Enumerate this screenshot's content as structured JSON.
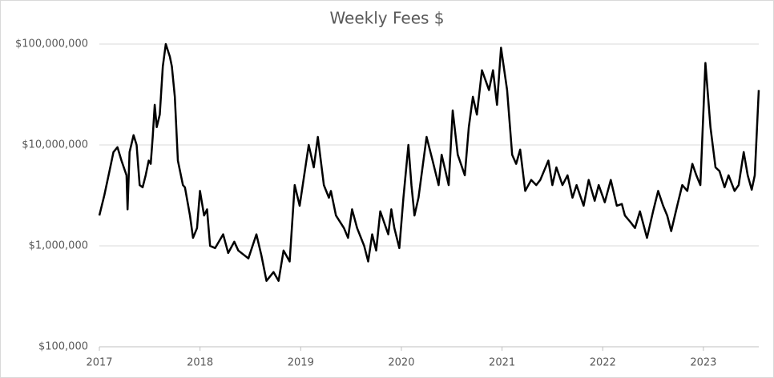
{
  "chart_data": {
    "type": "line",
    "title": "Weekly Fees $",
    "x": [
      2017.0,
      2017.05,
      2017.1,
      2017.14,
      2017.18,
      2017.22,
      2017.27,
      2017.28,
      2017.3,
      2017.34,
      2017.37,
      2017.4,
      2017.43,
      2017.46,
      2017.49,
      2017.51,
      2017.53,
      2017.55,
      2017.57,
      2017.6,
      2017.63,
      2017.66,
      2017.7,
      2017.72,
      2017.75,
      2017.78,
      2017.83,
      2017.85,
      2017.9,
      2017.93,
      2017.97,
      2018.0,
      2018.04,
      2018.07,
      2018.1,
      2018.15,
      2018.23,
      2018.28,
      2018.34,
      2018.38,
      2018.48,
      2018.56,
      2018.61,
      2018.66,
      2018.73,
      2018.78,
      2018.83,
      2018.89,
      2018.94,
      2018.99,
      2019.08,
      2019.13,
      2019.17,
      2019.23,
      2019.28,
      2019.3,
      2019.35,
      2019.43,
      2019.47,
      2019.51,
      2019.56,
      2019.63,
      2019.67,
      2019.71,
      2019.75,
      2019.79,
      2019.87,
      2019.9,
      2019.93,
      2019.98,
      2020.02,
      2020.07,
      2020.1,
      2020.13,
      2020.17,
      2020.25,
      2020.31,
      2020.37,
      2020.4,
      2020.47,
      2020.51,
      2020.56,
      2020.63,
      2020.67,
      2020.71,
      2020.75,
      2020.8,
      2020.87,
      2020.91,
      2020.95,
      2020.99,
      2021.05,
      2021.1,
      2021.14,
      2021.18,
      2021.23,
      2021.29,
      2021.34,
      2021.38,
      2021.46,
      2021.5,
      2021.54,
      2021.6,
      2021.65,
      2021.7,
      2021.74,
      2021.81,
      2021.86,
      2021.92,
      2021.96,
      2022.02,
      2022.08,
      2022.14,
      2022.19,
      2022.22,
      2022.28,
      2022.32,
      2022.37,
      2022.44,
      2022.5,
      2022.55,
      2022.6,
      2022.64,
      2022.68,
      2022.74,
      2022.79,
      2022.84,
      2022.89,
      2022.93,
      2022.97,
      2023.02,
      2023.07,
      2023.12,
      2023.16,
      2023.21,
      2023.25,
      2023.31,
      2023.35,
      2023.4,
      2023.44,
      2023.48,
      2023.51,
      2023.55
    ],
    "series": [
      {
        "color": "#000000",
        "values": [
          2000000,
          3200000,
          5500000,
          8500000,
          9500000,
          7000000,
          5000000,
          2300000,
          8500000,
          12500000,
          10000000,
          4000000,
          3800000,
          5000000,
          7000000,
          6500000,
          12000000,
          25000000,
          15000000,
          20000000,
          60000000,
          100000000,
          75000000,
          60000000,
          30000000,
          7000000,
          4000000,
          3800000,
          2000000,
          1200000,
          1500000,
          3500000,
          2000000,
          2300000,
          1000000,
          950000,
          1300000,
          850000,
          1100000,
          900000,
          750000,
          1300000,
          800000,
          450000,
          550000,
          450000,
          900000,
          700000,
          4000000,
          2500000,
          10000000,
          6000000,
          12000000,
          4000000,
          3000000,
          3500000,
          2000000,
          1500000,
          1200000,
          2300000,
          1500000,
          1000000,
          700000,
          1300000,
          900000,
          2200000,
          1300000,
          2300000,
          1500000,
          950000,
          3000000,
          10000000,
          4000000,
          2000000,
          3000000,
          12000000,
          7000000,
          4000000,
          8000000,
          4000000,
          22000000,
          8000000,
          5000000,
          15000000,
          30000000,
          20000000,
          55000000,
          35000000,
          55000000,
          25000000,
          92000000,
          35000000,
          8000000,
          6500000,
          9000000,
          3500000,
          4500000,
          4000000,
          4500000,
          7000000,
          4000000,
          6000000,
          4000000,
          5000000,
          3000000,
          4000000,
          2500000,
          4500000,
          2800000,
          4000000,
          2700000,
          4500000,
          2500000,
          2600000,
          2000000,
          1700000,
          1500000,
          2200000,
          1200000,
          2200000,
          3500000,
          2500000,
          2000000,
          1400000,
          2500000,
          4000000,
          3500000,
          6500000,
          5000000,
          4000000,
          65000000,
          15000000,
          6000000,
          5500000,
          3800000,
          5000000,
          3500000,
          4000000,
          8500000,
          5000000,
          3600000,
          5000000,
          35000000
        ]
      }
    ],
    "xlim": [
      2017,
      2023.55
    ],
    "xticks": [
      2017,
      2018,
      2019,
      2020,
      2021,
      2022,
      2023
    ],
    "ylim": [
      100000,
      100000000
    ],
    "log_scale": true,
    "grid": true,
    "yticks": [
      {
        "value": 100000,
        "label": "$100,000"
      },
      {
        "value": 1000000,
        "label": "$1,000,000"
      },
      {
        "value": 10000000,
        "label": "$10,000,000"
      },
      {
        "value": 100000000,
        "label": "$100,000,000"
      }
    ]
  }
}
